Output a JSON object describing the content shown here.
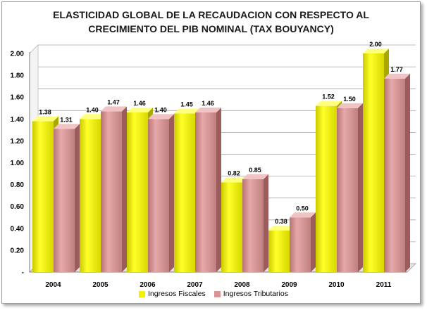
{
  "chart_data": {
    "type": "bar",
    "title": [
      "ELASTICIDAD GLOBAL DE LA RECAUDACION CON RESPECTO AL",
      "CRECIMIENTO DEL PIB NOMINAL (TAX BOUYANCY)"
    ],
    "categories": [
      "2004",
      "2005",
      "2006",
      "2007",
      "2008",
      "2009",
      "2010",
      "2011"
    ],
    "series": [
      {
        "name": "Ingresos Fiscales",
        "values": [
          1.38,
          1.4,
          1.46,
          1.45,
          0.82,
          0.38,
          1.52,
          2.0
        ],
        "labels": [
          "1.38",
          "1.40",
          "1.46",
          "1.45",
          "0.82",
          "0.38",
          "1.52",
          "2.00"
        ],
        "color": "#f2f200"
      },
      {
        "name": "Ingresos Tributarios",
        "values": [
          1.31,
          1.47,
          1.4,
          1.46,
          0.85,
          0.5,
          1.5,
          1.77
        ],
        "labels": [
          "1.31",
          "1.47",
          "1.40",
          "1.46",
          "0.85",
          "0.50",
          "1.50",
          "1.77"
        ],
        "color": "#d99595"
      }
    ],
    "ylim": [
      0,
      2.0
    ],
    "yticks": [
      "-",
      "0.20",
      "0.40",
      "0.60",
      "0.80",
      "1.00",
      "1.20",
      "1.40",
      "1.60",
      "1.80",
      "2.00"
    ],
    "grid": true,
    "legend": "bottom"
  }
}
